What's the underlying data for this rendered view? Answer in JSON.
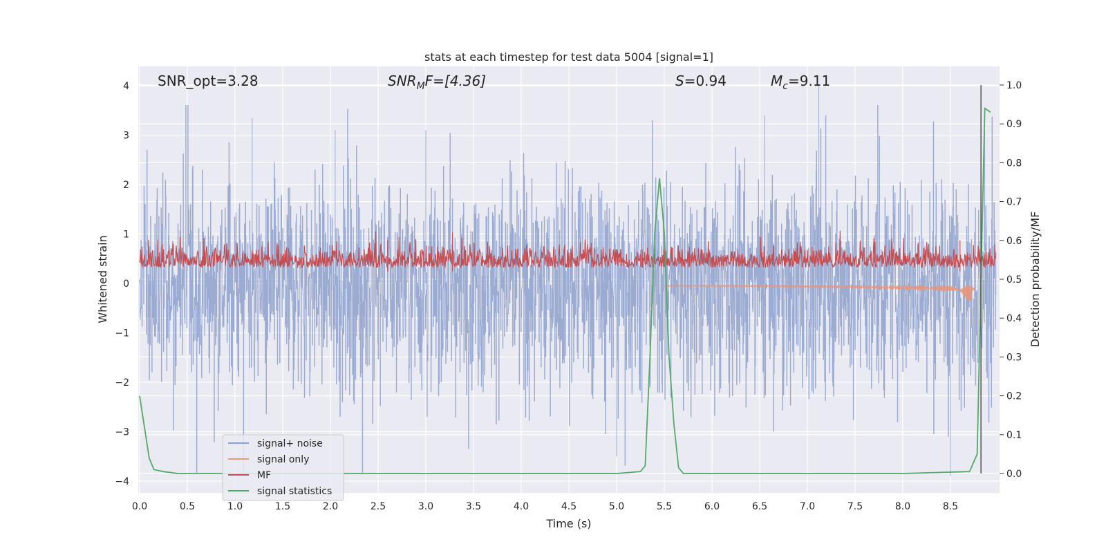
{
  "chart_data": {
    "type": "line",
    "title": "stats at each timestep for test data 5004 [signal=1]",
    "xlabel": "Time (s)",
    "ylabel_left": "Whitened strain",
    "ylabel_right": "Detection probability/MF",
    "xlim": [
      0.0,
      9.0
    ],
    "ylim_left": [
      -4.2,
      4.2
    ],
    "ylim_right": [
      -0.05,
      1.05
    ],
    "x_ticks": [
      "0.0",
      "0.5",
      "1.0",
      "1.5",
      "2.0",
      "2.5",
      "3.0",
      "3.5",
      "4.0",
      "4.5",
      "5.0",
      "5.5",
      "6.0",
      "6.5",
      "7.0",
      "7.5",
      "8.0",
      "8.5"
    ],
    "y_ticks_left": [
      "4",
      "3",
      "2",
      "1",
      "0",
      "−1",
      "−2",
      "−3",
      "−4"
    ],
    "y_ticks_right": [
      "1.0",
      "0.9",
      "0.8",
      "0.7",
      "0.6",
      "0.5",
      "0.4",
      "0.3",
      "0.2",
      "0.1",
      "0.0"
    ],
    "grid": true,
    "legend_position": "lower-left",
    "annotations": {
      "snr_opt": "SNR_opt=3.28",
      "snr_mf_main": "SNR",
      "snr_mf_sub": "M",
      "snr_mf_rest": "F=[4.36]",
      "s_var": "S",
      "s_val": "=0.94",
      "mc_var": "M",
      "mc_sub": "c",
      "mc_val": "=9.11"
    },
    "series": [
      {
        "name": "signal+ noise",
        "color": "#8da0cb",
        "axis": "left",
        "description_values": {
          "approx_range": [
            -3.9,
            4.0
          ],
          "sample_peaks": [
            [
              1.18,
              3.35
            ],
            [
              2.05,
              3.1
            ],
            [
              3.0,
              3.1
            ],
            [
              7.12,
              4.0
            ],
            [
              6.55,
              3.4
            ],
            [
              8.5,
              -3.9
            ],
            [
              5.0,
              -3.5
            ]
          ]
        }
      },
      {
        "name": "signal only",
        "color": "#e9967a",
        "axis": "left",
        "x": [
          5.5,
          6.0,
          6.5,
          7.0,
          7.5,
          8.0,
          8.5,
          8.7,
          8.75
        ],
        "y": [
          -0.02,
          -0.04,
          -0.06,
          -0.08,
          -0.1,
          -0.13,
          -0.2,
          -0.3,
          -0.1
        ]
      },
      {
        "name": "MF",
        "color": "#c44e52",
        "axis": "right",
        "approx_range": [
          0.5,
          0.63
        ],
        "sample_peaks": [
          [
            3.28,
            0.62
          ],
          [
            2.6,
            0.6
          ],
          [
            8.6,
            0.6
          ]
        ]
      },
      {
        "name": "signal statistics",
        "color": "#55a868",
        "axis": "right",
        "x": [
          0.0,
          0.05,
          0.1,
          0.15,
          0.25,
          0.4,
          1.0,
          2.0,
          3.0,
          4.0,
          5.0,
          5.25,
          5.3,
          5.35,
          5.4,
          5.45,
          5.5,
          5.55,
          5.6,
          5.65,
          5.7,
          6.0,
          7.0,
          8.0,
          8.7,
          8.78,
          8.82,
          8.86,
          8.92
        ],
        "y": [
          0.2,
          0.12,
          0.04,
          0.01,
          0.005,
          0.0,
          0.0,
          0.0,
          0.0,
          0.0,
          0.0,
          0.005,
          0.02,
          0.3,
          0.62,
          0.76,
          0.62,
          0.3,
          0.13,
          0.015,
          0.0,
          0.0,
          0.0,
          0.0,
          0.005,
          0.05,
          0.5,
          0.94,
          0.93
        ]
      }
    ],
    "vertical_marker": {
      "x": 8.82,
      "color": "#555555"
    }
  }
}
